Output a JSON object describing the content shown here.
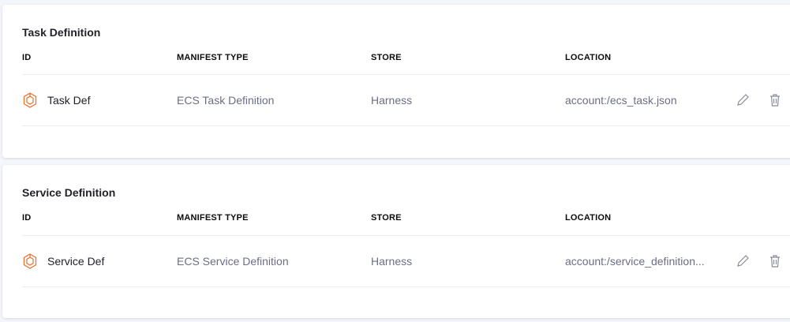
{
  "sections": [
    {
      "title": "Task Definition",
      "headers": {
        "id": "ID",
        "manifest_type": "MANIFEST TYPE",
        "store": "STORE",
        "location": "LOCATION"
      },
      "row": {
        "id": "Task Def",
        "manifest_type": "ECS Task Definition",
        "store": "Harness",
        "location": "account:/ecs_task.json",
        "icon": "ecs-hexagon-icon"
      }
    },
    {
      "title": "Service Definition",
      "headers": {
        "id": "ID",
        "manifest_type": "MANIFEST TYPE",
        "store": "STORE",
        "location": "LOCATION"
      },
      "row": {
        "id": "Service Def",
        "manifest_type": "ECS Service Definition",
        "store": "Harness",
        "location": "account:/service_definition...",
        "icon": "ecs-hexagon-icon"
      }
    }
  ],
  "colors": {
    "accent": "#e8702a",
    "text": "#22222a",
    "muted": "#6b6d85"
  }
}
